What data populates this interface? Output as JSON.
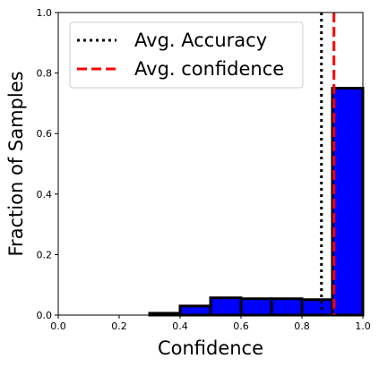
{
  "chart_data": {
    "type": "bar",
    "xlabel": "Confidence",
    "ylabel": "Fraction of Samples",
    "xlim": [
      0.0,
      1.0
    ],
    "ylim": [
      0.0,
      1.0
    ],
    "x_ticks": [
      "0.0",
      "0.2",
      "0.4",
      "0.6",
      "0.8",
      "1.0"
    ],
    "y_ticks": [
      "0.0",
      "0.2",
      "0.4",
      "0.6",
      "0.8",
      "1.0"
    ],
    "grid": false,
    "legend_position": "top-left",
    "bar_color": "#0000ff",
    "bar_edge_color": "#000000",
    "bins": [
      {
        "x0": 0.0,
        "x1": 0.1,
        "value": 0.0
      },
      {
        "x0": 0.1,
        "x1": 0.2,
        "value": 0.0
      },
      {
        "x0": 0.2,
        "x1": 0.3,
        "value": 0.0
      },
      {
        "x0": 0.3,
        "x1": 0.4,
        "value": 0.006
      },
      {
        "x0": 0.4,
        "x1": 0.5,
        "value": 0.03
      },
      {
        "x0": 0.5,
        "x1": 0.6,
        "value": 0.057
      },
      {
        "x0": 0.6,
        "x1": 0.7,
        "value": 0.054
      },
      {
        "x0": 0.7,
        "x1": 0.8,
        "value": 0.054
      },
      {
        "x0": 0.8,
        "x1": 0.9,
        "value": 0.051
      },
      {
        "x0": 0.9,
        "x1": 1.0,
        "value": 0.75
      }
    ],
    "reference_lines": [
      {
        "name": "Avg. Accuracy",
        "x": 0.864,
        "style": "dotted",
        "color": "#000000"
      },
      {
        "name": "Avg. confidence",
        "x": 0.905,
        "style": "dashed",
        "color": "#ff0000"
      }
    ]
  }
}
